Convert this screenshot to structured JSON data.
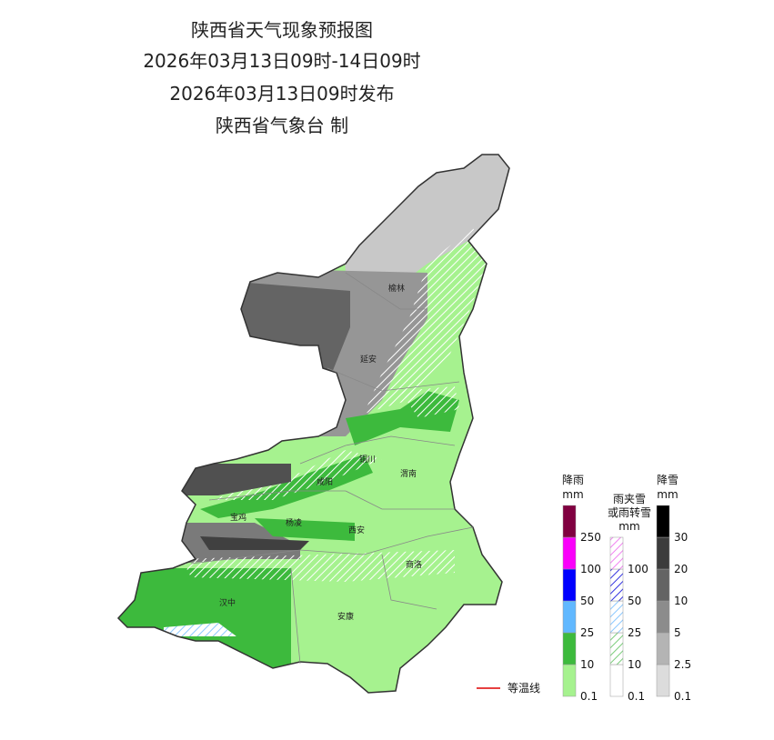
{
  "header": {
    "title": "陕西省天气现象预报图",
    "period": "2026年03月13日09时-14日09时",
    "issued": "2026年03月13日09时发布",
    "agency": "陕西省气象台 制"
  },
  "cities": [
    {
      "name": "榆林"
    },
    {
      "name": "延安"
    },
    {
      "name": "铜川"
    },
    {
      "name": "渭南"
    },
    {
      "name": "咸阳"
    },
    {
      "name": "宝鸡"
    },
    {
      "name": "杨凌"
    },
    {
      "name": "西安"
    },
    {
      "name": "商洛"
    },
    {
      "name": "汉中"
    },
    {
      "name": "安康"
    }
  ],
  "legend": {
    "rain": {
      "title": "降雨",
      "unit": "mm",
      "levels": [
        0.1,
        10,
        25,
        50,
        100,
        250
      ]
    },
    "mixed": {
      "title": "雨夹雪",
      "title2": "或雨转雪",
      "unit": "mm",
      "levels": [
        0.1,
        10,
        25,
        50,
        100
      ]
    },
    "snow": {
      "title": "降雪",
      "unit": "mm",
      "levels": [
        0.1,
        2.5,
        5,
        10,
        20,
        30
      ]
    },
    "isotherm": "等温线"
  }
}
